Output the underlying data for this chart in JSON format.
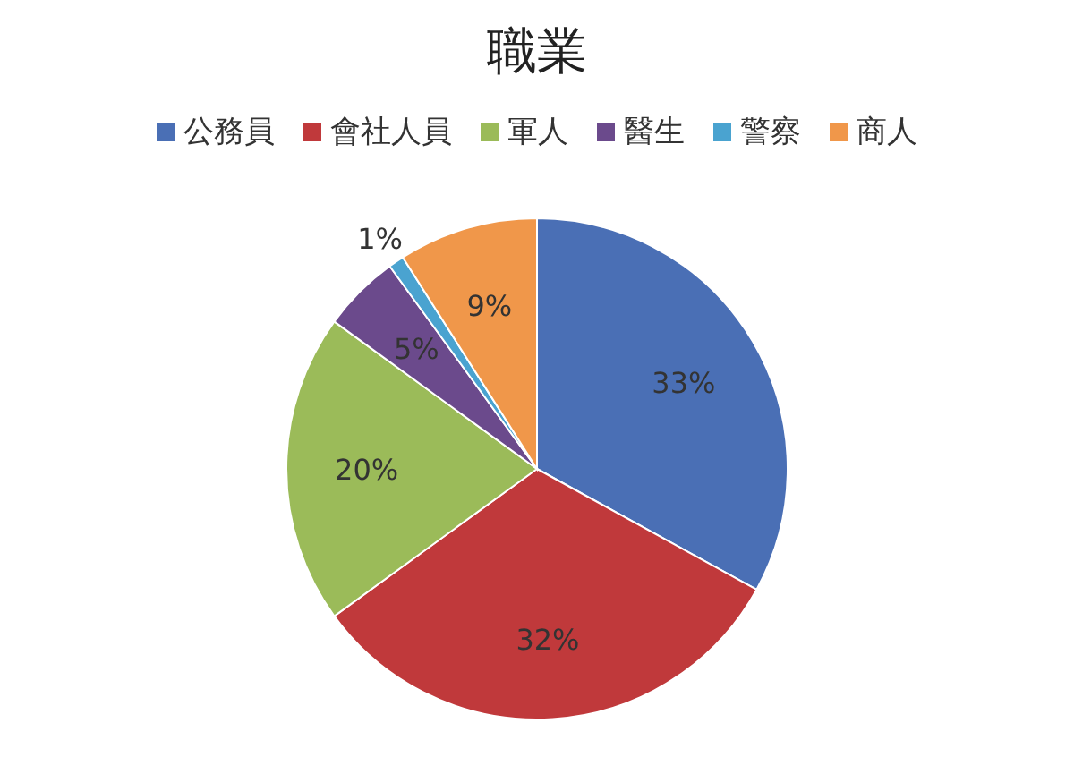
{
  "chart_data": {
    "type": "pie",
    "title": "職業",
    "categories": [
      "公務員",
      "會社人員",
      "軍人",
      "醫生",
      "警察",
      "商人"
    ],
    "values": [
      33,
      32,
      20,
      5,
      1,
      9
    ],
    "colors": [
      "#4a6fb5",
      "#c0393b",
      "#9bbb59",
      "#6b4a8c",
      "#4aa3d0",
      "#f0974a"
    ],
    "value_labels": [
      "33%",
      "32%",
      "20%",
      "5%",
      "1%",
      "9%"
    ],
    "legend": "top"
  }
}
